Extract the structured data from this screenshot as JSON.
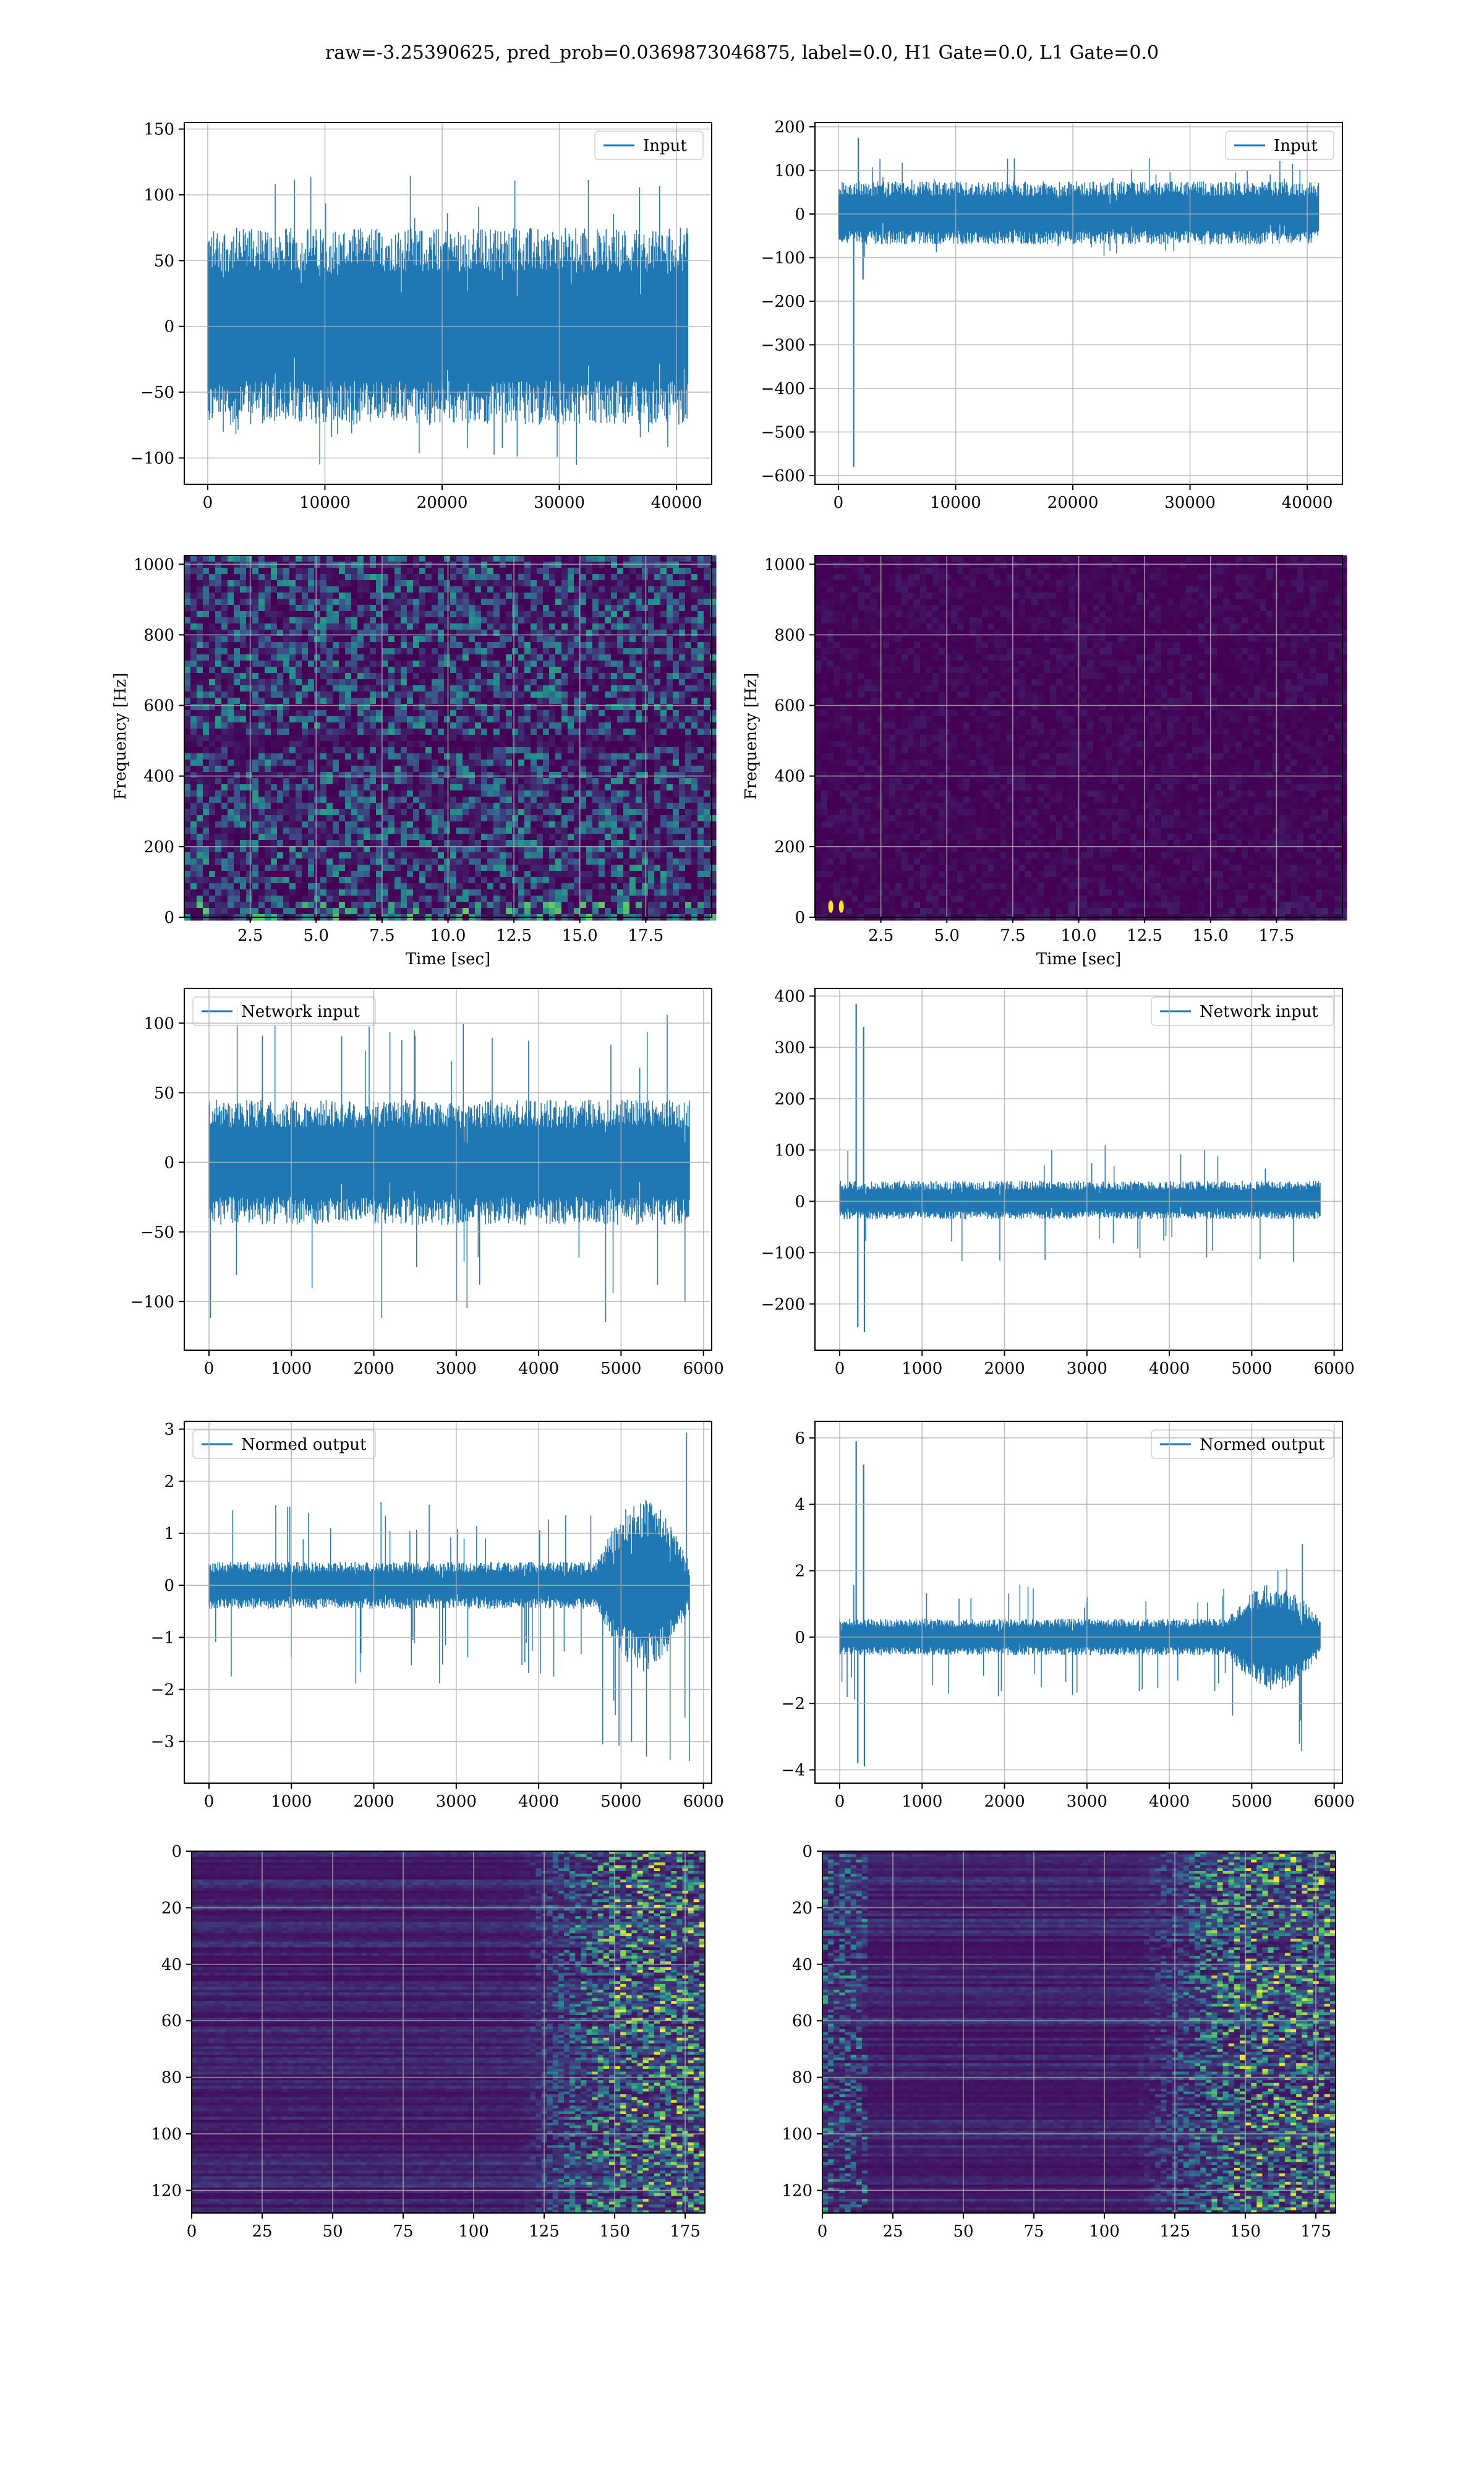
{
  "suptitle": "raw=-3.25390625, pred_prob=0.0369873046875, label=0.0, H1 Gate=0.0, L1 Gate=0.0",
  "colors": {
    "line": "#1f77b4",
    "grid": "#b0b0b0",
    "viridis_low": "#440154",
    "viridis_mid": "#21918c",
    "viridis_high": "#fde725"
  },
  "chart_data": [
    {
      "panel": "row1-left",
      "type": "line",
      "grid": true,
      "legend": "top-right",
      "series": [
        {
          "name": "Input",
          "envelope_lo": -75,
          "envelope_hi": 75,
          "peak_lo": -118,
          "peak_hi": 120
        }
      ],
      "xlim": [
        -2000,
        43000
      ],
      "ylim": [
        -120,
        155
      ],
      "x_end": 40960,
      "xticks": [
        0,
        10000,
        20000,
        30000,
        40000
      ],
      "xtick_labels": [
        "0",
        "10000",
        "20000",
        "30000",
        "40000"
      ],
      "yticks": [
        -100,
        -50,
        0,
        50,
        100,
        150
      ],
      "ytick_labels": [
        "−100",
        "−50",
        "0",
        "50",
        "100",
        "150"
      ],
      "xlabel": "",
      "ylabel": ""
    },
    {
      "panel": "row1-right",
      "type": "line",
      "grid": true,
      "legend": "top-right",
      "series": [
        {
          "name": "Input",
          "envelope_lo": -70,
          "envelope_hi": 75,
          "peak_lo": -100,
          "peak_hi": 130,
          "spikes": [
            {
              "x": 1300,
              "y": -580
            },
            {
              "x": 1700,
              "y": 175
            },
            {
              "x": 2100,
              "y": -150
            }
          ]
        }
      ],
      "xlim": [
        -2000,
        43000
      ],
      "ylim": [
        -620,
        210
      ],
      "x_end": 40960,
      "xticks": [
        0,
        10000,
        20000,
        30000,
        40000
      ],
      "xtick_labels": [
        "0",
        "10000",
        "20000",
        "30000",
        "40000"
      ],
      "yticks": [
        -600,
        -500,
        -400,
        -300,
        -200,
        -100,
        0,
        100,
        200
      ],
      "ytick_labels": [
        "−600",
        "−500",
        "−400",
        "−300",
        "−200",
        "−100",
        "0",
        "100",
        "200"
      ],
      "xlabel": "",
      "ylabel": ""
    },
    {
      "panel": "row2-left",
      "type": "heatmap",
      "grid": true,
      "xlim": [
        0,
        20
      ],
      "ylim": [
        0,
        1025
      ],
      "xticks": [
        2.5,
        5.0,
        7.5,
        10.0,
        12.5,
        15.0,
        17.5
      ],
      "xtick_labels": [
        "2.5",
        "5.0",
        "7.5",
        "10.0",
        "12.5",
        "15.0",
        "17.5"
      ],
      "yticks": [
        0,
        200,
        400,
        600,
        800,
        1000
      ],
      "ytick_labels": [
        "0",
        "200",
        "400",
        "600",
        "800",
        "1000"
      ],
      "xlabel": "Time [sec]",
      "ylabel": "Frequency [Hz]",
      "intensity": 0.55,
      "bands": [
        500
      ]
    },
    {
      "panel": "row2-right",
      "type": "heatmap",
      "grid": true,
      "xlim": [
        0,
        20
      ],
      "ylim": [
        0,
        1025
      ],
      "xticks": [
        2.5,
        5.0,
        7.5,
        10.0,
        12.5,
        15.0,
        17.5
      ],
      "xtick_labels": [
        "2.5",
        "5.0",
        "7.5",
        "10.0",
        "12.5",
        "15.0",
        "17.5"
      ],
      "yticks": [
        0,
        200,
        400,
        600,
        800,
        1000
      ],
      "ytick_labels": [
        "0",
        "200",
        "400",
        "600",
        "800",
        "1000"
      ],
      "xlabel": "Time [sec]",
      "ylabel": "Frequency [Hz]",
      "intensity": 0.08,
      "bright_spots": [
        {
          "t": 0.6,
          "f": 30
        },
        {
          "t": 1.0,
          "f": 30
        }
      ]
    },
    {
      "panel": "row3-left",
      "type": "line",
      "grid": true,
      "legend": "top-left",
      "series": [
        {
          "name": "Network input",
          "envelope_lo": -45,
          "envelope_hi": 45,
          "peak_lo": -122,
          "peak_hi": 115
        }
      ],
      "xlim": [
        -300,
        6100
      ],
      "ylim": [
        -135,
        125
      ],
      "x_end": 5830,
      "xticks": [
        0,
        1000,
        2000,
        3000,
        4000,
        5000,
        6000
      ],
      "xtick_labels": [
        "0",
        "1000",
        "2000",
        "3000",
        "4000",
        "5000",
        "6000"
      ],
      "yticks": [
        -100,
        -50,
        0,
        50,
        100
      ],
      "ytick_labels": [
        "−100",
        "−50",
        "0",
        "50",
        "100"
      ],
      "xlabel": "",
      "ylabel": ""
    },
    {
      "panel": "row3-right",
      "type": "line",
      "grid": true,
      "legend": "top-right",
      "series": [
        {
          "name": "Network input",
          "envelope_lo": -35,
          "envelope_hi": 40,
          "peak_lo": -120,
          "peak_hi": 110,
          "spikes": [
            {
              "x": 200,
              "y": 385
            },
            {
              "x": 220,
              "y": -245
            },
            {
              "x": 290,
              "y": 340
            },
            {
              "x": 300,
              "y": -255
            }
          ]
        }
      ],
      "xlim": [
        -300,
        6100
      ],
      "ylim": [
        -290,
        415
      ],
      "x_end": 5830,
      "xticks": [
        0,
        1000,
        2000,
        3000,
        4000,
        5000,
        6000
      ],
      "xtick_labels": [
        "0",
        "1000",
        "2000",
        "3000",
        "4000",
        "5000",
        "6000"
      ],
      "yticks": [
        -200,
        -100,
        0,
        100,
        200,
        300,
        400
      ],
      "ytick_labels": [
        "−200",
        "−100",
        "0",
        "100",
        "200",
        "300",
        "400"
      ],
      "xlabel": "",
      "ylabel": ""
    },
    {
      "panel": "row4-left",
      "type": "line",
      "grid": true,
      "legend": "top-left",
      "series": [
        {
          "name": "Normed output",
          "envelope_lo": -0.45,
          "envelope_hi": 0.45,
          "peak_lo": -1.9,
          "peak_hi": 1.6,
          "burst": {
            "x0": 4700,
            "x1": 5830,
            "amp": 1.5,
            "peak_lo": -3.5,
            "peak_hi": 2.95
          }
        }
      ],
      "xlim": [
        -300,
        6100
      ],
      "ylim": [
        -3.8,
        3.15
      ],
      "x_end": 5830,
      "xticks": [
        0,
        1000,
        2000,
        3000,
        4000,
        5000,
        6000
      ],
      "xtick_labels": [
        "0",
        "1000",
        "2000",
        "3000",
        "4000",
        "5000",
        "6000"
      ],
      "yticks": [
        -3,
        -2,
        -1,
        0,
        1,
        2,
        3
      ],
      "ytick_labels": [
        "−3",
        "−2",
        "−1",
        "0",
        "1",
        "2",
        "3"
      ],
      "xlabel": "",
      "ylabel": ""
    },
    {
      "panel": "row4-right",
      "type": "line",
      "grid": true,
      "legend": "top-right",
      "series": [
        {
          "name": "Normed output",
          "envelope_lo": -0.55,
          "envelope_hi": 0.55,
          "peak_lo": -1.9,
          "peak_hi": 1.6,
          "spikes": [
            {
              "x": 200,
              "y": 5.9
            },
            {
              "x": 220,
              "y": -3.8
            },
            {
              "x": 290,
              "y": 5.2
            },
            {
              "x": 300,
              "y": -3.9
            }
          ],
          "burst": {
            "x0": 4700,
            "x1": 5830,
            "amp": 1.1,
            "peak_lo": -3.9,
            "peak_hi": 3.2
          }
        }
      ],
      "xlim": [
        -300,
        6100
      ],
      "ylim": [
        -4.4,
        6.5
      ],
      "x_end": 5830,
      "xticks": [
        0,
        1000,
        2000,
        3000,
        4000,
        5000,
        6000
      ],
      "xtick_labels": [
        "0",
        "1000",
        "2000",
        "3000",
        "4000",
        "5000",
        "6000"
      ],
      "yticks": [
        -4,
        -2,
        0,
        2,
        4,
        6
      ],
      "ytick_labels": [
        "−4",
        "−2",
        "0",
        "2",
        "4",
        "6"
      ],
      "xlabel": "",
      "ylabel": ""
    },
    {
      "panel": "row5-left",
      "type": "heatmap",
      "grid": true,
      "y_inverted": true,
      "xlim": [
        0,
        182
      ],
      "ylim": [
        0,
        128
      ],
      "rows": 128,
      "cols": 182,
      "active_from_col": 115,
      "xticks": [
        0,
        25,
        50,
        75,
        100,
        125,
        150,
        175
      ],
      "xtick_labels": [
        "0",
        "25",
        "50",
        "75",
        "100",
        "125",
        "150",
        "175"
      ],
      "yticks": [
        0,
        20,
        40,
        60,
        80,
        100,
        120
      ],
      "ytick_labels": [
        "0",
        "20",
        "40",
        "60",
        "80",
        "100",
        "120"
      ],
      "xlabel": "",
      "ylabel": ""
    },
    {
      "panel": "row5-right",
      "type": "heatmap",
      "grid": true,
      "y_inverted": true,
      "xlim": [
        0,
        182
      ],
      "ylim": [
        0,
        128
      ],
      "rows": 128,
      "cols": 182,
      "active_from_col": 110,
      "early_activity_cols": [
        0,
        15
      ],
      "xticks": [
        0,
        25,
        50,
        75,
        100,
        125,
        150,
        175
      ],
      "xtick_labels": [
        "0",
        "25",
        "50",
        "75",
        "100",
        "125",
        "150",
        "175"
      ],
      "yticks": [
        0,
        20,
        40,
        60,
        80,
        100,
        120
      ],
      "ytick_labels": [
        "0",
        "20",
        "40",
        "60",
        "80",
        "100",
        "120"
      ],
      "xlabel": "",
      "ylabel": ""
    }
  ]
}
